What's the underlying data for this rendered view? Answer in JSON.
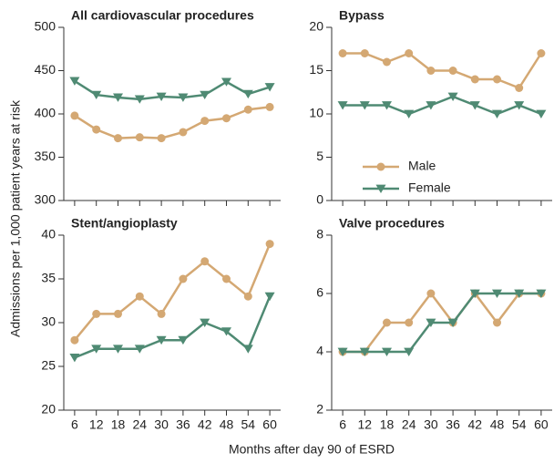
{
  "chart_data": [
    {
      "type": "line",
      "title": "All cardiovascular procedures",
      "x": [
        6,
        12,
        18,
        24,
        30,
        36,
        42,
        48,
        54,
        60
      ],
      "xlim": [
        3,
        63
      ],
      "xticks": [
        6,
        12,
        18,
        24,
        30,
        36,
        42,
        48,
        54,
        60
      ],
      "show_xtick_labels": false,
      "ylim": [
        300,
        500
      ],
      "yticks": [
        300,
        350,
        400,
        450,
        500
      ],
      "legend": false,
      "series": [
        {
          "color": "#d4a873",
          "marker": "circle",
          "values": [
            398,
            382,
            372,
            373,
            372,
            379,
            392,
            395,
            405,
            408
          ]
        },
        {
          "color": "#4f8a73",
          "marker": "triangle-down",
          "values": [
            438,
            422,
            419,
            417,
            420,
            419,
            422,
            437,
            423,
            431
          ]
        }
      ]
    },
    {
      "type": "line",
      "title": "Bypass",
      "x": [
        6,
        12,
        18,
        24,
        30,
        36,
        42,
        48,
        54,
        60
      ],
      "xlim": [
        3,
        63
      ],
      "xticks": [
        6,
        12,
        18,
        24,
        30,
        36,
        42,
        48,
        54,
        60
      ],
      "show_xtick_labels": false,
      "ylim": [
        0,
        20
      ],
      "yticks": [
        0,
        5,
        10,
        15,
        20
      ],
      "legend": true,
      "series": [
        {
          "name": "Male",
          "color": "#d4a873",
          "marker": "circle",
          "values": [
            17,
            17,
            16,
            17,
            15,
            15,
            14,
            14,
            13,
            17
          ]
        },
        {
          "name": "Female",
          "color": "#4f8a73",
          "marker": "triangle-down",
          "values": [
            11,
            11,
            11,
            10,
            11,
            12,
            11,
            10,
            11,
            10
          ]
        }
      ]
    },
    {
      "type": "line",
      "title": "Stent/angioplasty",
      "x": [
        6,
        12,
        18,
        24,
        30,
        36,
        42,
        48,
        54,
        60
      ],
      "xlim": [
        3,
        63
      ],
      "xticks": [
        6,
        12,
        18,
        24,
        30,
        36,
        42,
        48,
        54,
        60
      ],
      "show_xtick_labels": true,
      "ylim": [
        20,
        40
      ],
      "yticks": [
        20,
        25,
        30,
        35,
        40
      ],
      "legend": false,
      "series": [
        {
          "color": "#d4a873",
          "marker": "circle",
          "values": [
            28,
            31,
            31,
            33,
            31,
            35,
            37,
            35,
            33,
            39
          ]
        },
        {
          "color": "#4f8a73",
          "marker": "triangle-down",
          "values": [
            26,
            27,
            27,
            27,
            28,
            28,
            30,
            29,
            27,
            33
          ]
        }
      ]
    },
    {
      "type": "line",
      "title": "Valve procedures",
      "x": [
        6,
        12,
        18,
        24,
        30,
        36,
        42,
        48,
        54,
        60
      ],
      "xlim": [
        3,
        63
      ],
      "xticks": [
        6,
        12,
        18,
        24,
        30,
        36,
        42,
        48,
        54,
        60
      ],
      "show_xtick_labels": true,
      "ylim": [
        2,
        8
      ],
      "yticks": [
        2,
        4,
        6,
        8
      ],
      "legend": false,
      "series": [
        {
          "color": "#d4a873",
          "marker": "circle",
          "values": [
            4,
            4,
            5,
            5,
            6,
            5,
            6,
            5,
            6,
            6
          ]
        },
        {
          "color": "#4f8a73",
          "marker": "triangle-down",
          "values": [
            4,
            4,
            4,
            4,
            5,
            5,
            6,
            6,
            6,
            6
          ]
        }
      ]
    }
  ],
  "y_label": "Admissions per 1,000 patient years at risk",
  "x_label": "Months after day 90 of ESRD"
}
